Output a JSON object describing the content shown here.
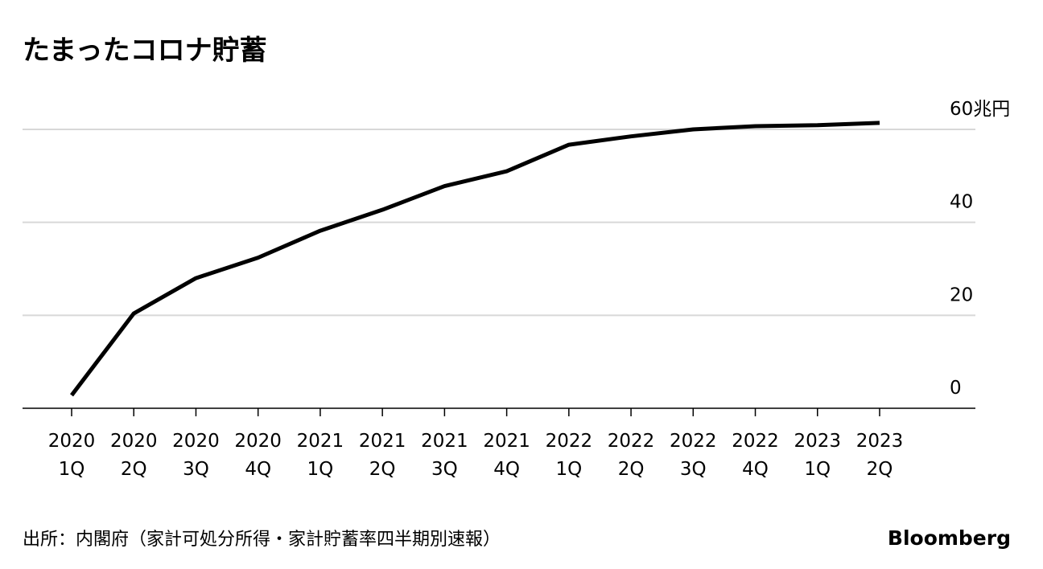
{
  "chart_data": {
    "type": "line",
    "title": "たまったコロナ貯蓄",
    "categories": [
      "2020 1Q",
      "2020 2Q",
      "2020 3Q",
      "2020 4Q",
      "2021 1Q",
      "2021 2Q",
      "2021 3Q",
      "2021 4Q",
      "2022 1Q",
      "2022 2Q",
      "2022 3Q",
      "2022 4Q",
      "2023 1Q",
      "2023 2Q"
    ],
    "values": [
      2.8,
      20.4,
      28.0,
      32.4,
      38.2,
      42.7,
      47.8,
      51.0,
      56.7,
      58.5,
      60.0,
      60.7,
      60.9,
      61.4
    ],
    "color": "#000000",
    "ylim": [
      0,
      60
    ],
    "yticks": [
      0,
      20,
      40,
      {
        "value": 60,
        "label": "60兆円"
      }
    ],
    "grid": true,
    "source": "出所：内閣府（家計可処分所得・家計貯蓄率四半期別速報）",
    "brand": "Bloomberg"
  }
}
